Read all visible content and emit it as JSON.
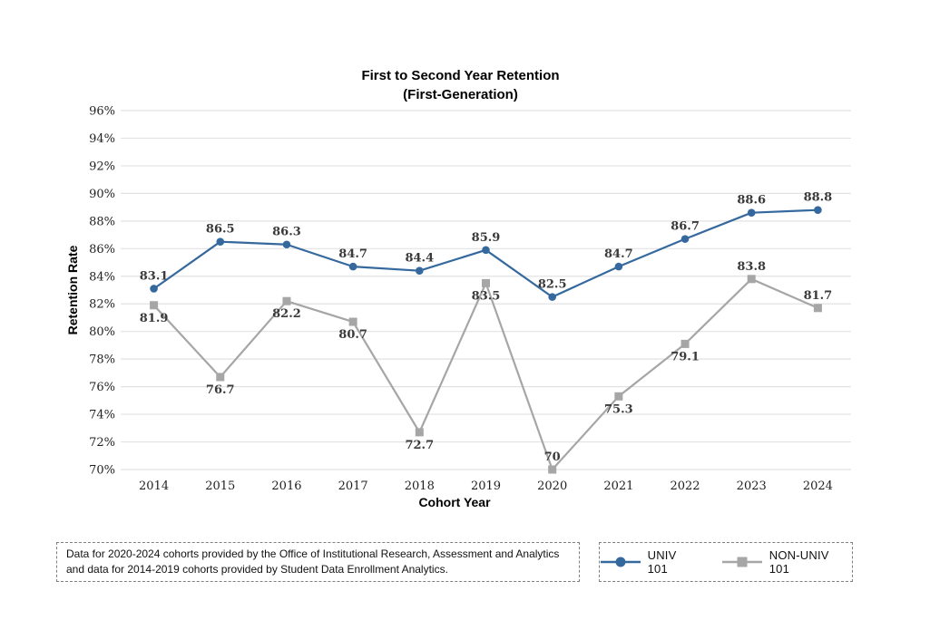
{
  "chart_data": {
    "type": "line",
    "title": "First to Second Year Retention",
    "subtitle": "(First-Generation)",
    "xlabel": "Cohort Year",
    "ylabel": "Retention Rate",
    "categories": [
      "2014",
      "2015",
      "2016",
      "2017",
      "2018",
      "2019",
      "2020",
      "2021",
      "2022",
      "2023",
      "2024"
    ],
    "ylim": [
      70,
      96
    ],
    "y_tick_step": 2,
    "y_tick_format": "percent",
    "grid": "horizontal",
    "legend_position": "bottom-right",
    "series": [
      {
        "name": "UNIV 101",
        "color": "#35699e",
        "marker": "circle",
        "values": [
          83.1,
          86.5,
          86.3,
          84.7,
          84.4,
          85.9,
          82.5,
          84.7,
          86.7,
          88.6,
          88.8
        ],
        "label_positions": [
          "above",
          "above",
          "above",
          "above",
          "above",
          "above",
          "above",
          "above",
          "above",
          "above",
          "above"
        ]
      },
      {
        "name": "NON-UNIV 101",
        "color": "#a6a6a6",
        "marker": "square",
        "values": [
          81.9,
          76.7,
          82.2,
          80.7,
          72.7,
          83.5,
          70,
          75.3,
          79.1,
          83.8,
          81.7
        ],
        "label_positions": [
          "below",
          "below",
          "below",
          "below",
          "below",
          "below",
          "above",
          "below",
          "below",
          "above",
          "above"
        ]
      }
    ]
  },
  "footnote": {
    "text": "Data for 2020-2024 cohorts provided by the Office of Institutional Research, Assessment and Analytics and data for 2014-2019 cohorts provided by Student Data Enrollment Analytics."
  },
  "colors": {
    "gridline": "#e2e2e2",
    "axis_text": "#1f1f1f",
    "data_label": "#3a3a3a",
    "box_border": "#7f7f7f"
  }
}
